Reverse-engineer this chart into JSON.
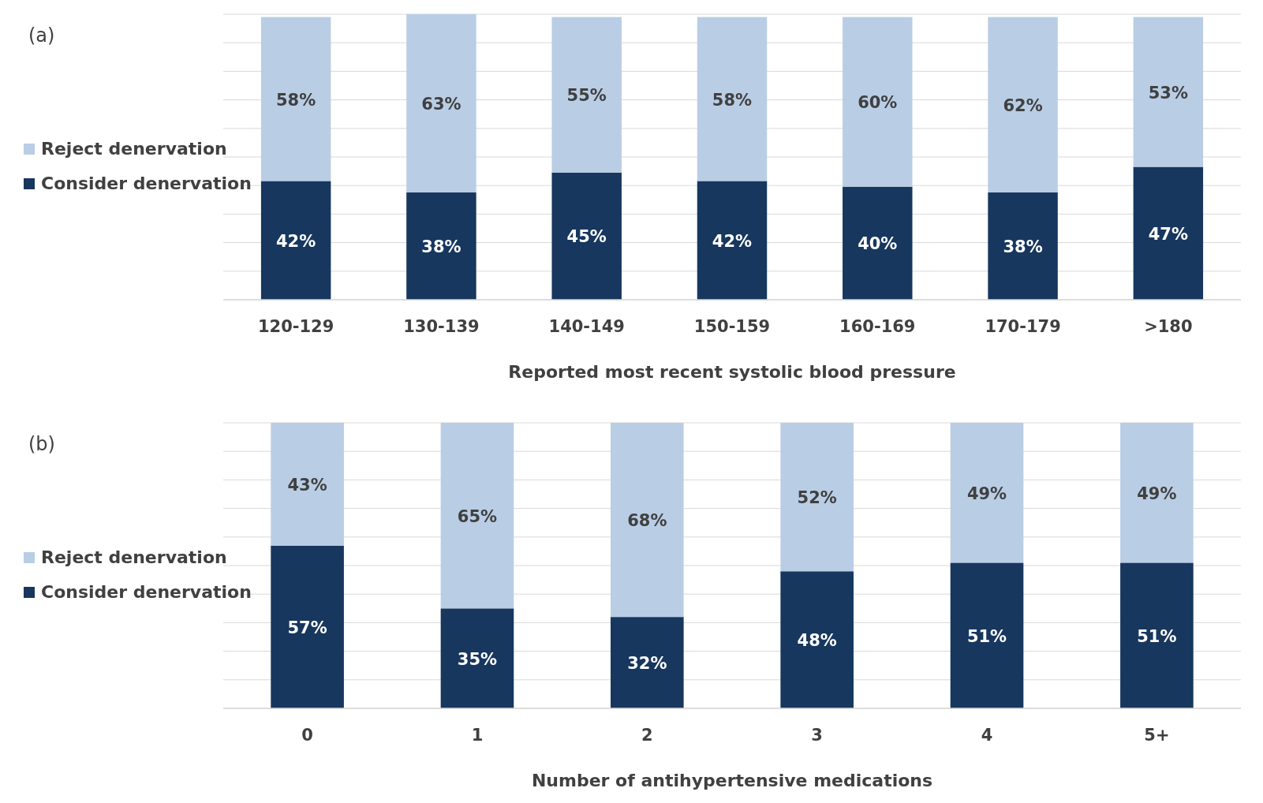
{
  "chart_data": [
    {
      "type": "bar",
      "annotations": [
        "(a)"
      ],
      "xlabel": "Reported most recent systolic blood pressure",
      "categories": [
        "120-129",
        "130-139",
        "140-149",
        "150-159",
        "160-169",
        "170-179",
        ">180"
      ],
      "stacked": true,
      "grid": "y",
      "legend": "left",
      "tick_labels": "x",
      "series": [
        {
          "name": "Consider denervation",
          "color": "#17375e",
          "values": [
            42,
            38,
            45,
            42,
            40,
            38,
            47
          ],
          "value_labels": [
            "42%",
            "38%",
            "45%",
            "42%",
            "40%",
            "38%",
            "47%"
          ]
        },
        {
          "name": "Reject denervation",
          "color": "#b9cde5",
          "values": [
            58,
            63,
            55,
            58,
            60,
            62,
            53
          ],
          "value_labels": [
            "58%",
            "63%",
            "55%",
            "58%",
            "60%",
            "62%",
            "53%"
          ]
        }
      ]
    },
    {
      "type": "bar",
      "annotations": [
        "(b)"
      ],
      "xlabel": "Number of antihypertensive medications",
      "categories": [
        "0",
        "1",
        "2",
        "3",
        "4",
        "5+"
      ],
      "stacked": true,
      "grid": "y",
      "legend": "left",
      "tick_labels": "x",
      "series": [
        {
          "name": "Consider denervation",
          "color": "#17375e",
          "values": [
            57,
            35,
            32,
            48,
            51,
            51
          ],
          "value_labels": [
            "57%",
            "35%",
            "32%",
            "48%",
            "51%",
            "51%"
          ]
        },
        {
          "name": "Reject denervation",
          "color": "#b9cde5",
          "values": [
            43,
            65,
            68,
            52,
            49,
            49
          ],
          "value_labels": [
            "43%",
            "65%",
            "68%",
            "52%",
            "49%",
            "49%"
          ]
        }
      ]
    }
  ]
}
